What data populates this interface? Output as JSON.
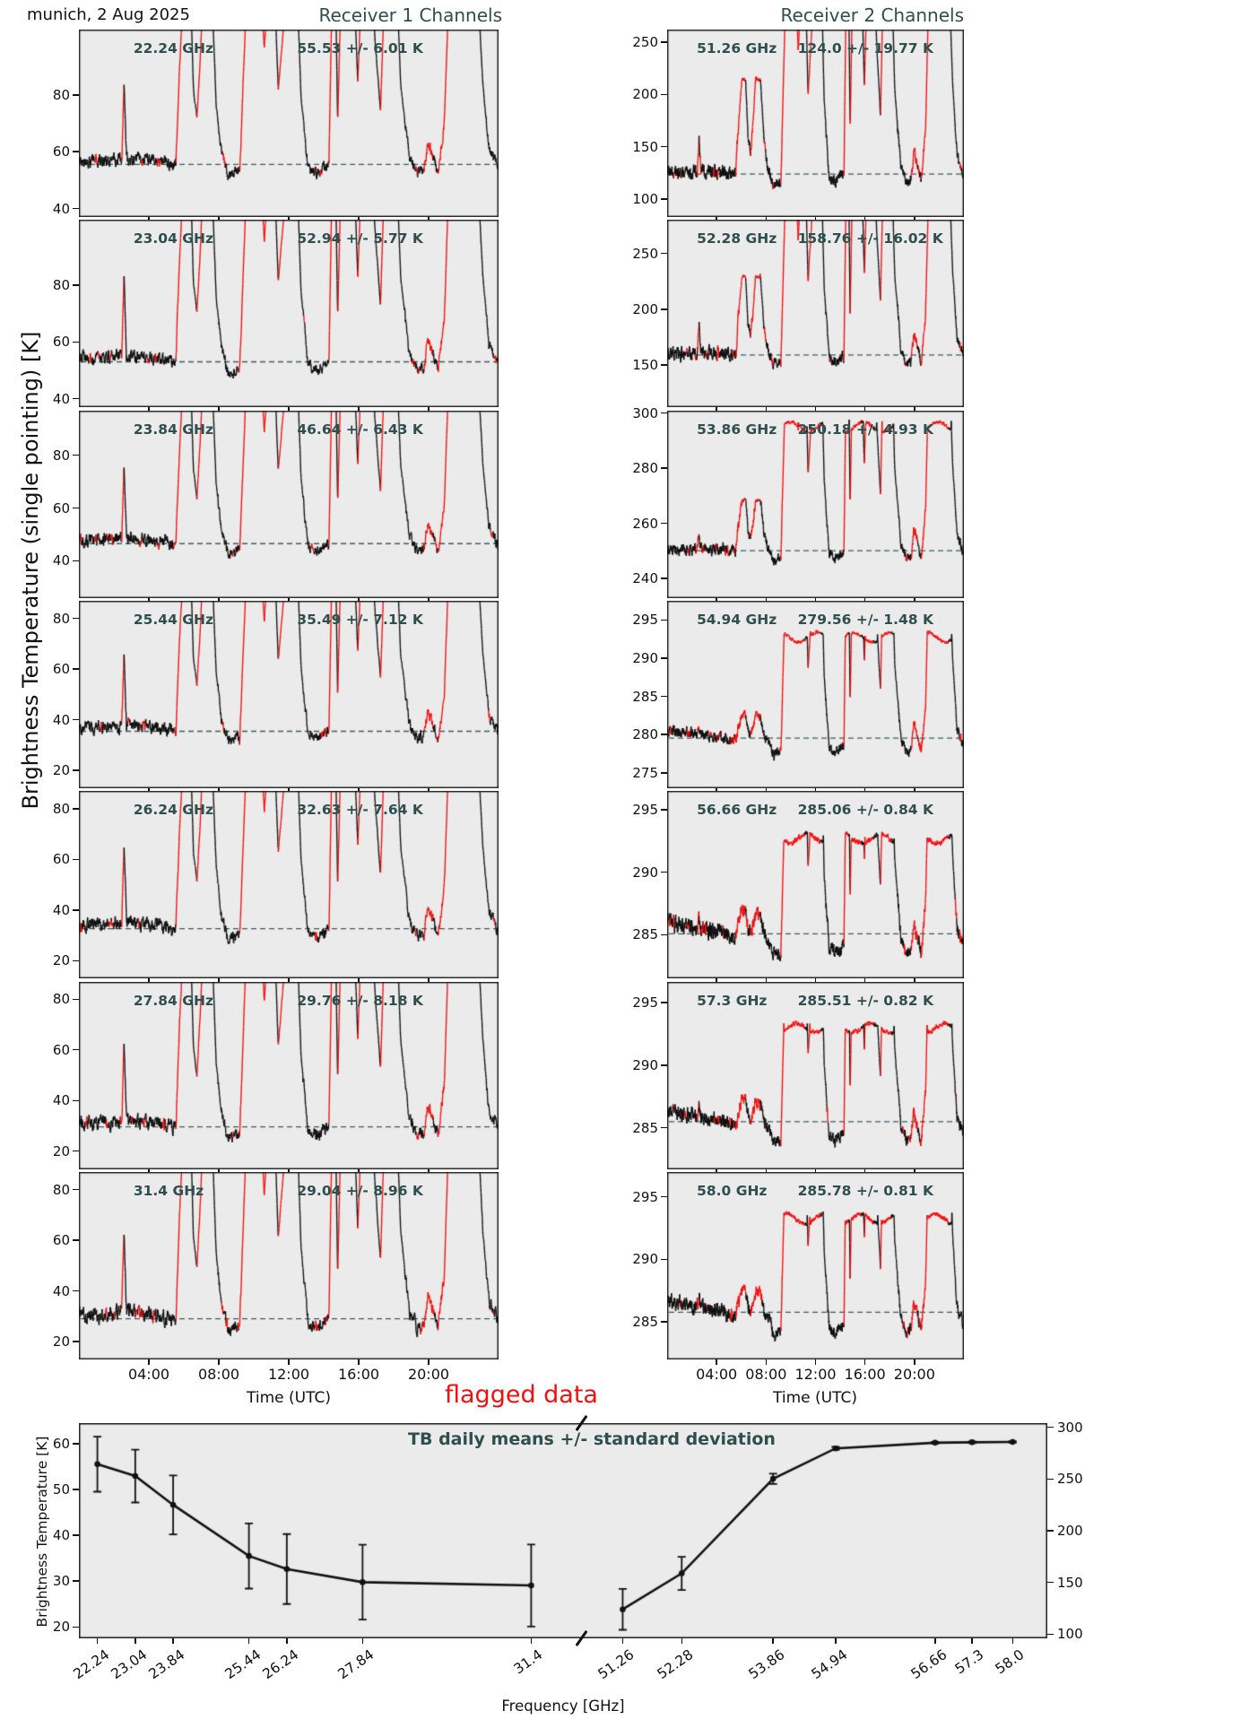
{
  "title": {
    "site_date": "munich, 2 Aug 2025",
    "receiver1": "Receiver 1 Channels",
    "receiver2": "Receiver 2 Channels"
  },
  "labels": {
    "main_ylabel": "Brightness Temperature (single pointing) [K]",
    "time_xlabel": "Time (UTC)",
    "flagged": "flagged data",
    "bottom_title": "TB daily means +/- standard deviation",
    "bottom_xlabel": "Frequency [GHz]",
    "bottom_ylabel": "Brightness Temperature [K]"
  },
  "colors": {
    "accent": "#2F4F4F",
    "flagged_red": "#F20F0F",
    "series_black": "#111111",
    "panel_bg": "#EBEBEB",
    "frame": "#1a1a1a"
  },
  "time_axis": {
    "ticks": [
      "04:00",
      "08:00",
      "12:00",
      "16:00",
      "20:00"
    ],
    "tick_hours": [
      4,
      8,
      12,
      16,
      20
    ]
  },
  "chart_data": [
    {
      "type": "line",
      "name": "tb_timeseries_by_channel",
      "x_unit": "hours_utc",
      "x_range": [
        0,
        24
      ],
      "flag_meaning": "red = flagged data",
      "panels": [
        {
          "receiver": 1,
          "freq_label": "22.24 GHz",
          "stats_label": "55.53 +/- 6.01 K",
          "mean_k": 55.53,
          "std_k": 6.01,
          "ylim": [
            37,
            103
          ],
          "yticks": [
            40,
            60,
            80
          ],
          "low_scale": 1,
          "cap": 2,
          "noise_k": 1.6,
          "drift_k": 0
        },
        {
          "receiver": 1,
          "freq_label": "23.04 GHz",
          "stats_label": "52.94 +/- 5.77 K",
          "mean_k": 52.94,
          "std_k": 5.77,
          "ylim": [
            37,
            103
          ],
          "yticks": [
            40,
            60,
            80
          ],
          "low_scale": 1,
          "cap": 2,
          "noise_k": 1.6,
          "drift_k": 0
        },
        {
          "receiver": 1,
          "freq_label": "23.84 GHz",
          "stats_label": "46.64 +/- 6.43 K",
          "mean_k": 46.64,
          "std_k": 6.43,
          "ylim": [
            26,
            97
          ],
          "yticks": [
            40,
            60,
            80
          ],
          "low_scale": 1,
          "cap": 2,
          "noise_k": 1.7,
          "drift_k": 0
        },
        {
          "receiver": 1,
          "freq_label": "25.44 GHz",
          "stats_label": "35.49 +/- 7.12 K",
          "mean_k": 35.49,
          "std_k": 7.12,
          "ylim": [
            13,
            87
          ],
          "yticks": [
            20,
            40,
            60,
            80
          ],
          "low_scale": 1,
          "cap": 2,
          "noise_k": 1.8,
          "drift_k": 0
        },
        {
          "receiver": 1,
          "freq_label": "26.24 GHz",
          "stats_label": "32.63 +/- 7.64 K",
          "mean_k": 32.63,
          "std_k": 7.64,
          "ylim": [
            13,
            87
          ],
          "yticks": [
            20,
            40,
            60,
            80
          ],
          "low_scale": 1,
          "cap": 2,
          "noise_k": 1.9,
          "drift_k": 0
        },
        {
          "receiver": 1,
          "freq_label": "27.84 GHz",
          "stats_label": "29.76 +/- 8.18 K",
          "mean_k": 29.76,
          "std_k": 8.18,
          "ylim": [
            13,
            87
          ],
          "yticks": [
            20,
            40,
            60,
            80
          ],
          "low_scale": 1,
          "cap": 2,
          "noise_k": 2.0,
          "drift_k": 0
        },
        {
          "receiver": 1,
          "freq_label": "31.4 GHz",
          "stats_label": "29.04 +/- 8.96 K",
          "mean_k": 29.04,
          "std_k": 8.96,
          "ylim": [
            13,
            87
          ],
          "yticks": [
            20,
            40,
            60,
            80
          ],
          "low_scale": 1,
          "cap": 2,
          "noise_k": 2.1,
          "drift_k": 0
        },
        {
          "receiver": 2,
          "freq_label": "51.26 GHz",
          "stats_label": "124.0 +/- 19.77 K",
          "mean_k": 124.0,
          "std_k": 19.77,
          "ylim": [
            83,
            262
          ],
          "yticks": [
            100,
            150,
            200,
            250
          ],
          "low_scale": 0.45,
          "cap": 2,
          "noise_k": 4.5,
          "drift_k": 0
        },
        {
          "receiver": 2,
          "freq_label": "52.28 GHz",
          "stats_label": "158.76 +/- 16.02 K",
          "mean_k": 158.76,
          "std_k": 16.02,
          "ylim": [
            112,
            280
          ],
          "yticks": [
            150,
            200,
            250
          ],
          "low_scale": 0.4,
          "cap": 2,
          "noise_k": 4.0,
          "drift_k": 0
        },
        {
          "receiver": 2,
          "freq_label": "53.86 GHz",
          "stats_label": "250.18 +/- 4.93 K",
          "mean_k": 250.18,
          "std_k": 4.93,
          "ylim": [
            233,
            301
          ],
          "yticks": [
            240,
            260,
            280,
            300
          ],
          "low_scale": 0.25,
          "cap": 0.92,
          "noise_k": 1.4,
          "drift_k": 0
        },
        {
          "receiver": 2,
          "freq_label": "54.94 GHz",
          "stats_label": "279.56 +/- 1.48 K",
          "mean_k": 279.56,
          "std_k": 1.48,
          "ylim": [
            273,
            297.5
          ],
          "yticks": [
            275,
            280,
            285,
            290,
            295
          ],
          "low_scale": 0.13,
          "cap": 0.82,
          "noise_k": 0.5,
          "drift_k": 0.9
        },
        {
          "receiver": 2,
          "freq_label": "56.66 GHz",
          "stats_label": "285.06 +/- 0.84 K",
          "mean_k": 285.06,
          "std_k": 0.84,
          "ylim": [
            281.5,
            296.5
          ],
          "yticks": [
            285,
            290,
            295
          ],
          "low_scale": 0.13,
          "cap": 0.78,
          "noise_k": 0.45,
          "drift_k": 0.9
        },
        {
          "receiver": 2,
          "freq_label": "57.3 GHz",
          "stats_label": "285.51 +/- 0.82 K",
          "mean_k": 285.51,
          "std_k": 0.82,
          "ylim": [
            281.7,
            296.7
          ],
          "yticks": [
            285,
            290,
            295
          ],
          "low_scale": 0.13,
          "cap": 0.785,
          "noise_k": 0.4,
          "drift_k": 0.9
        },
        {
          "receiver": 2,
          "freq_label": "58.0 GHz",
          "stats_label": "285.78 +/- 0.81 K",
          "mean_k": 285.78,
          "std_k": 0.81,
          "ylim": [
            282,
            297
          ],
          "yticks": [
            285,
            290,
            295
          ],
          "low_scale": 0.13,
          "cap": 0.78,
          "noise_k": 0.4,
          "drift_k": 0.9
        }
      ],
      "diurnal_profile": {
        "hours": [
          0,
          2.45,
          2.58,
          2.72,
          5.55,
          5.75,
          6.05,
          6.35,
          6.55,
          6.75,
          6.95,
          7.15,
          7.55,
          7.85,
          8.15,
          8.55,
          9.2,
          9.45,
          9.65,
          10.35,
          10.6,
          10.9,
          11.15,
          11.4,
          11.7,
          12.0,
          12.45,
          12.7,
          13.1,
          13.6,
          14.3,
          14.5,
          14.66,
          14.8,
          14.95,
          15.25,
          15.7,
          15.95,
          16.2,
          16.7,
          16.95,
          17.25,
          17.45,
          17.75,
          18.15,
          18.4,
          18.9,
          19.35,
          19.75,
          19.95,
          20.25,
          20.55,
          20.9,
          21.2,
          22.3,
          22.75,
          23.1,
          23.45,
          24
        ],
        "level": [
          0.02,
          0.04,
          0.6,
          0.05,
          0,
          0.7,
          1.45,
          1.45,
          0.55,
          0.35,
          0.8,
          1.45,
          1.45,
          0.45,
          0.1,
          -0.08,
          -0.05,
          0.8,
          1.45,
          1.45,
          0.85,
          1.45,
          1.45,
          0.55,
          1.0,
          1.45,
          1.45,
          0.5,
          -0.02,
          -0.06,
          0,
          1.45,
          1.45,
          0.3,
          1.1,
          1.45,
          1.45,
          0.6,
          1.45,
          1.45,
          0.9,
          0.4,
          1.2,
          1.45,
          1.45,
          0.6,
          0.05,
          -0.06,
          -0.04,
          0.16,
          0.06,
          -0.06,
          0.3,
          1.45,
          1.45,
          1.45,
          0.6,
          0.12,
          -0.02
        ],
        "flag": "krkkrrrkkrrrkkkkrrrrrrkrrrkkkkrrkrrrkrrkkrrrkkkkrrkrrrrkkkk"
      }
    },
    {
      "type": "line",
      "name": "tb_daily_means",
      "title": "TB daily means +/- standard deviation",
      "xlabel": "Frequency [GHz]",
      "ylabel": "Brightness Temperature [K]",
      "segments": [
        {
          "side": "left",
          "freqs": [
            22.24,
            23.04,
            23.84,
            25.44,
            26.24,
            27.84,
            31.4
          ],
          "xtick_labels": [
            "22.24",
            "23.04",
            "23.84",
            "25.44",
            "26.24",
            "27.84",
            "31.4"
          ],
          "means": [
            55.53,
            52.94,
            46.64,
            35.49,
            32.63,
            29.76,
            29.04
          ],
          "stds": [
            6.01,
            5.77,
            6.43,
            7.12,
            7.64,
            8.18,
            8.96
          ],
          "yticks": [
            20,
            30,
            40,
            50,
            60
          ],
          "ylim": [
            17.5,
            64.5
          ]
        },
        {
          "side": "right",
          "freqs": [
            51.26,
            52.28,
            53.86,
            54.94,
            56.66,
            57.3,
            58.0
          ],
          "xtick_labels": [
            "51.26",
            "52.28",
            "53.86",
            "54.94",
            "56.66",
            "57.3",
            "58.0"
          ],
          "means": [
            124.0,
            158.76,
            250.18,
            279.56,
            285.06,
            285.51,
            285.78
          ],
          "stds": [
            19.77,
            16.02,
            4.93,
            1.48,
            0.84,
            0.82,
            0.81
          ],
          "yticks": [
            100,
            150,
            200,
            250,
            300
          ],
          "ylim": [
            96,
            304
          ]
        }
      ]
    }
  ]
}
